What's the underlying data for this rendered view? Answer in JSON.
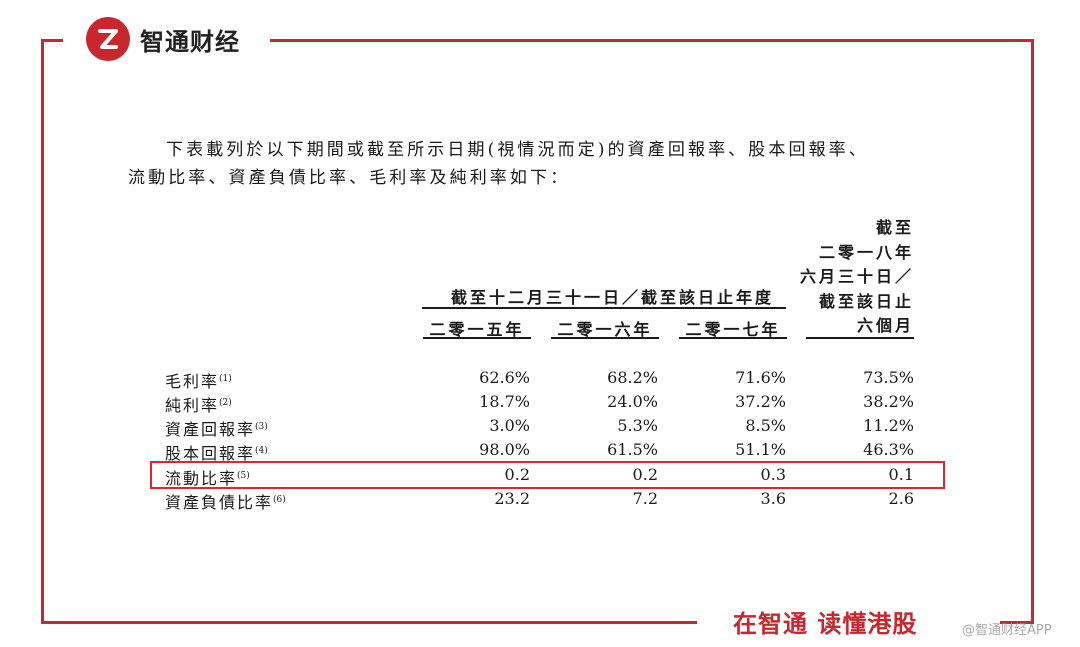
{
  "brand": {
    "name": "智通财经",
    "mark": "Z"
  },
  "intro": {
    "line1": "下表載列於以下期間或截至所示日期(視情況而定)的資產回報率、股本回報率、",
    "line2": "流動比率、資產負債比率、毛利率及純利率如下："
  },
  "table": {
    "group_header": "截至十二月三十一日／截至該日止年度",
    "columns": [
      "二零一五年",
      "二零一六年",
      "二零一七年"
    ],
    "last_column_lines": [
      "截至",
      "二零一八年",
      "六月三十日／",
      "截至該日止",
      "六個月"
    ],
    "rows": [
      {
        "label": "毛利率",
        "note": "(1)",
        "values": [
          "62.6%",
          "68.2%",
          "71.6%",
          "73.5%"
        ]
      },
      {
        "label": "純利率",
        "note": "(2)",
        "values": [
          "18.7%",
          "24.0%",
          "37.2%",
          "38.2%"
        ]
      },
      {
        "label": "資產回報率",
        "note": "(3)",
        "values": [
          "3.0%",
          "5.3%",
          "8.5%",
          "11.2%"
        ]
      },
      {
        "label": "股本回報率",
        "note": "(4)",
        "values": [
          "98.0%",
          "61.5%",
          "51.1%",
          "46.3%"
        ]
      },
      {
        "label": "流動比率",
        "note": "(5)",
        "values": [
          "0.2",
          "0.2",
          "0.3",
          "0.1"
        ]
      },
      {
        "label": "資產負債比率",
        "note": "(6)",
        "values": [
          "23.2",
          "7.2",
          "3.6",
          "2.6"
        ]
      }
    ],
    "highlighted_row_label": "流動比率"
  },
  "footer": {
    "slogan": "在智通 读懂港股",
    "watermark": "@智通财经APP"
  },
  "colors": {
    "brand_red": "#c8272d",
    "highlight_red": "#e0262c"
  }
}
